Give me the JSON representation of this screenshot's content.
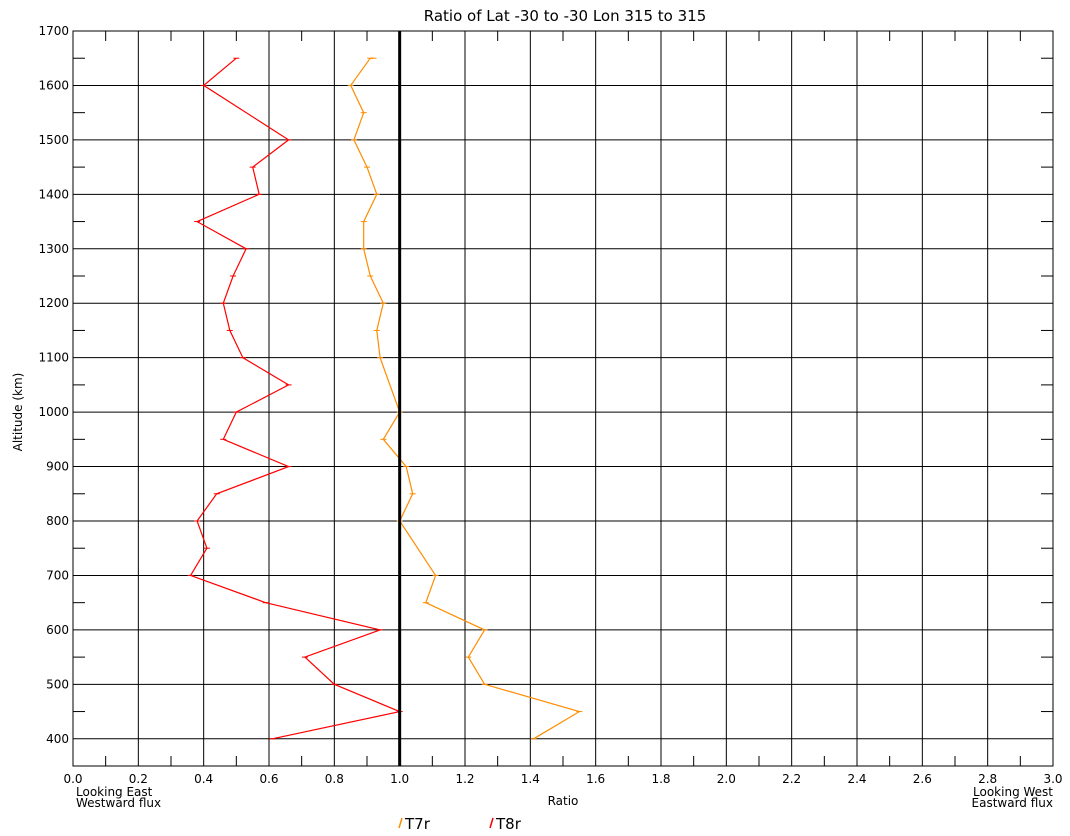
{
  "chart_data": {
    "type": "line",
    "title": "Ratio of Lat -30 to -30  Lon 315 to 315",
    "xlabel": "Ratio",
    "ylabel": "Altitude (km)",
    "xlim": [
      0.0,
      3.0
    ],
    "ylim": [
      350,
      1700
    ],
    "x_ticks": [
      "0.0",
      "0.2",
      "0.4",
      "0.6",
      "0.8",
      "1.0",
      "1.2",
      "1.4",
      "1.6",
      "1.8",
      "2.0",
      "2.2",
      "2.4",
      "2.6",
      "2.8",
      "3.0"
    ],
    "y_ticks": [
      "400",
      "500",
      "600",
      "700",
      "800",
      "900",
      "1000",
      "1100",
      "1200",
      "1300",
      "1400",
      "1500",
      "1600",
      "1700"
    ],
    "left_annotation": [
      "Looking East",
      "Westward flux"
    ],
    "right_annotation": [
      "Looking West",
      "Eastward flux"
    ],
    "grid": true,
    "reference_line_x": 1.0,
    "legend_placement": "bottom-center",
    "series": [
      {
        "name": "T7r",
        "color": "#ff8c00",
        "points": [
          [
            1.41,
            400
          ],
          [
            1.55,
            450
          ],
          [
            1.26,
            500
          ],
          [
            1.21,
            550
          ],
          [
            1.26,
            600
          ],
          [
            1.08,
            650
          ],
          [
            1.11,
            700
          ],
          [
            1.0,
            800
          ],
          [
            1.04,
            850
          ],
          [
            1.02,
            900
          ],
          [
            0.95,
            950
          ],
          [
            1.0,
            1000
          ],
          [
            0.94,
            1100
          ],
          [
            0.93,
            1150
          ],
          [
            0.95,
            1200
          ],
          [
            0.91,
            1250
          ],
          [
            0.89,
            1300
          ],
          [
            0.89,
            1350
          ],
          [
            0.93,
            1400
          ],
          [
            0.9,
            1450
          ],
          [
            0.86,
            1500
          ],
          [
            0.89,
            1550
          ],
          [
            0.85,
            1600
          ],
          [
            0.91,
            1650
          ],
          [
            0.92,
            1650
          ]
        ]
      },
      {
        "name": "T8r",
        "color": "#ff0000",
        "points": [
          [
            0.61,
            400
          ],
          [
            1.0,
            450
          ],
          [
            0.8,
            500
          ],
          [
            0.71,
            550
          ],
          [
            0.94,
            600
          ],
          [
            0.59,
            650
          ],
          [
            0.36,
            700
          ],
          [
            0.41,
            750
          ],
          [
            0.38,
            800
          ],
          [
            0.44,
            850
          ],
          [
            0.66,
            900
          ],
          [
            0.46,
            950
          ],
          [
            0.5,
            1000
          ],
          [
            0.66,
            1050
          ],
          [
            0.52,
            1100
          ],
          [
            0.48,
            1150
          ],
          [
            0.46,
            1200
          ],
          [
            0.49,
            1250
          ],
          [
            0.53,
            1300
          ],
          [
            0.38,
            1350
          ],
          [
            0.57,
            1400
          ],
          [
            0.55,
            1450
          ],
          [
            0.66,
            1500
          ],
          [
            0.4,
            1600
          ],
          [
            0.5,
            1650
          ]
        ]
      }
    ]
  }
}
